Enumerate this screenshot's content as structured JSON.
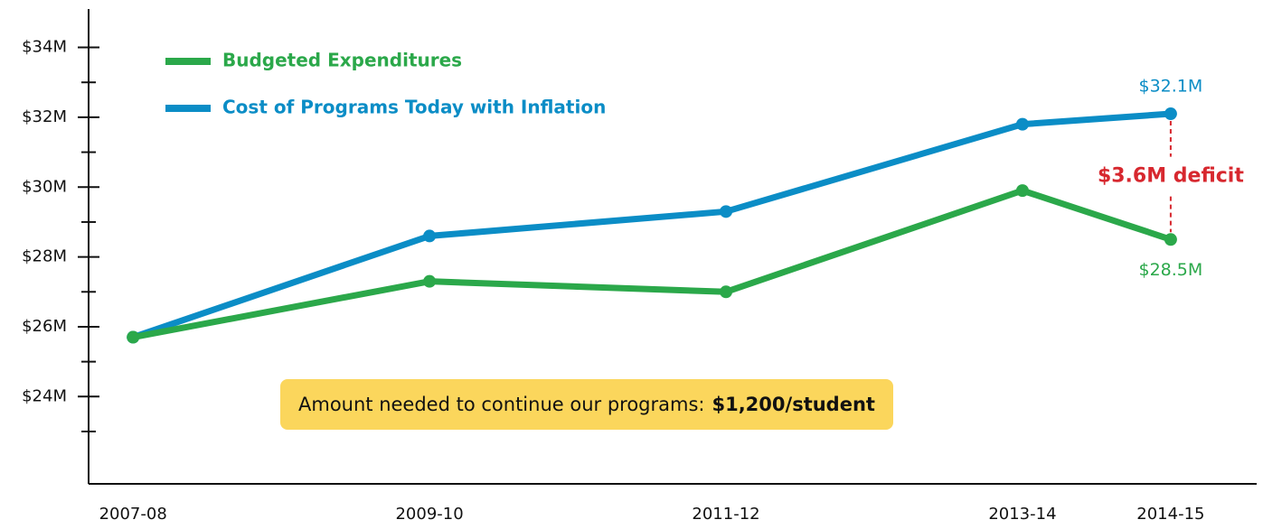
{
  "chart_data": {
    "type": "line",
    "x": [
      2007,
      2009,
      2011,
      2013,
      2014
    ],
    "xlim": [
      2006.7,
      2014.58
    ],
    "xticks": [
      {
        "value": 2007,
        "label": "2007-08"
      },
      {
        "value": 2009,
        "label": "2009-10"
      },
      {
        "value": 2011,
        "label": "2011-12"
      },
      {
        "value": 2013,
        "label": "2013-14"
      },
      {
        "value": 2014,
        "label": "2014-15"
      }
    ],
    "ylim": [
      21.5,
      35.1
    ],
    "yticks": [
      {
        "value": 24,
        "label": "$24M"
      },
      {
        "value": 26,
        "label": "$26M"
      },
      {
        "value": 28,
        "label": "$28M"
      },
      {
        "value": 30,
        "label": "$30M"
      },
      {
        "value": 32,
        "label": "$32M"
      },
      {
        "value": 34,
        "label": "$34M"
      }
    ],
    "yminorticks": [
      23,
      25,
      27,
      29,
      31,
      33
    ],
    "series": [
      {
        "name": "Budgeted Expenditures",
        "color": "#2ba84a",
        "values": [
          25.7,
          27.3,
          27.0,
          29.9,
          28.5
        ],
        "value_labels": [
          null,
          null,
          null,
          null,
          "$28.5M"
        ]
      },
      {
        "name": "Cost of Programs Today with Inflation",
        "color": "#0b8dc6",
        "values": [
          25.7,
          28.6,
          29.3,
          31.8,
          32.1
        ],
        "value_labels": [
          null,
          null,
          null,
          null,
          "$32.1M"
        ]
      }
    ],
    "annotation": {
      "text": "$3.6M deficit",
      "color": "#d7282f"
    },
    "callout": {
      "text": "Amount needed to continue our programs:",
      "emphasis": "$1,200/student"
    }
  }
}
